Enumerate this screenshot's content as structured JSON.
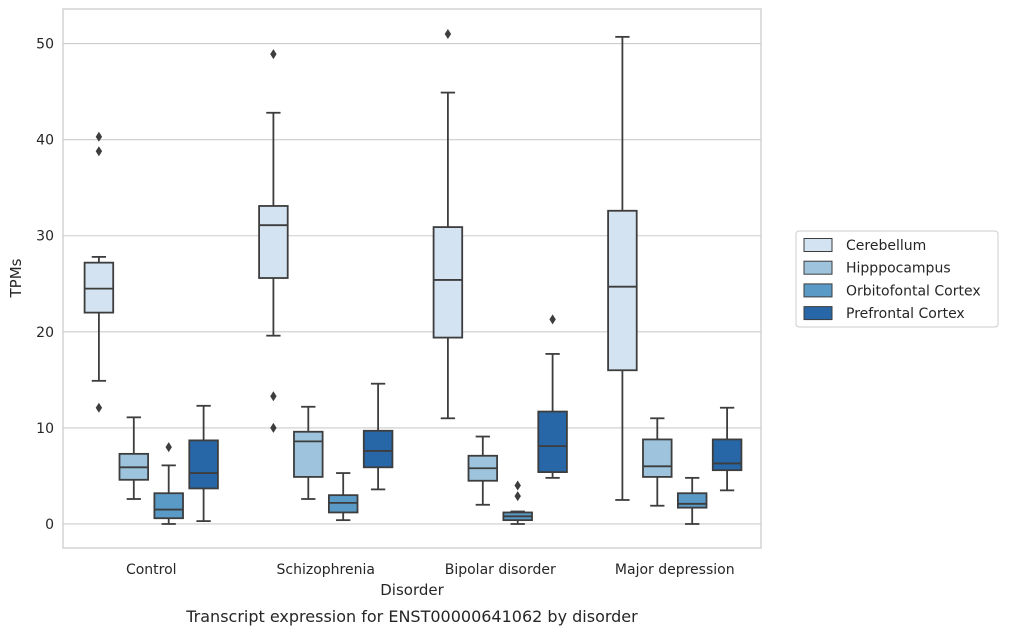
{
  "chart_data": {
    "type": "box",
    "caption": "Transcript expression for ENST00000641062 by disorder",
    "xlabel": "Disorder",
    "ylabel": "TPMs",
    "ylim": [
      -2.5,
      53.6
    ],
    "yticks": [
      0,
      10,
      20,
      30,
      40,
      50
    ],
    "grid": "horizontal",
    "legend_position": "right",
    "categories": [
      "Control",
      "Schizophrenia",
      "Bipolar disorder",
      "Major depression"
    ],
    "series": [
      {
        "name": "Cerebellum",
        "color": "#d4e3f1",
        "boxes": [
          {
            "whisker_low": 14.9,
            "q1": 22.0,
            "median": 24.5,
            "q3": 27.2,
            "whisker_high": 27.8,
            "outliers": [
              12.1,
              38.8,
              40.3
            ]
          },
          {
            "whisker_low": 19.6,
            "q1": 25.6,
            "median": 31.1,
            "q3": 33.1,
            "whisker_high": 42.8,
            "outliers": [
              10.0,
              13.3,
              48.9
            ]
          },
          {
            "whisker_low": 11.0,
            "q1": 19.4,
            "median": 25.4,
            "q3": 30.9,
            "whisker_high": 44.9,
            "outliers": [
              51.0
            ]
          },
          {
            "whisker_low": 2.5,
            "q1": 16.0,
            "median": 24.7,
            "q3": 32.6,
            "whisker_high": 50.7,
            "outliers": []
          }
        ]
      },
      {
        "name": "Hipppocampus",
        "color": "#9dc4dc",
        "boxes": [
          {
            "whisker_low": 2.6,
            "q1": 4.6,
            "median": 5.9,
            "q3": 7.3,
            "whisker_high": 11.1,
            "outliers": []
          },
          {
            "whisker_low": 2.6,
            "q1": 4.9,
            "median": 8.6,
            "q3": 9.6,
            "whisker_high": 12.2,
            "outliers": []
          },
          {
            "whisker_low": 2.0,
            "q1": 4.5,
            "median": 5.8,
            "q3": 7.1,
            "whisker_high": 9.1,
            "outliers": []
          },
          {
            "whisker_low": 1.9,
            "q1": 4.9,
            "median": 6.0,
            "q3": 8.8,
            "whisker_high": 11.0,
            "outliers": []
          }
        ]
      },
      {
        "name": "Orbitofontal Cortex",
        "color": "#5a9ac7",
        "boxes": [
          {
            "whisker_low": 0.0,
            "q1": 0.6,
            "median": 1.5,
            "q3": 3.2,
            "whisker_high": 6.1,
            "outliers": [
              8.0
            ]
          },
          {
            "whisker_low": 0.4,
            "q1": 1.2,
            "median": 2.2,
            "q3": 3.0,
            "whisker_high": 5.3,
            "outliers": []
          },
          {
            "whisker_low": 0.0,
            "q1": 0.4,
            "median": 0.8,
            "q3": 1.2,
            "whisker_high": 1.3,
            "outliers": [
              2.9,
              4.0
            ]
          },
          {
            "whisker_low": 0.0,
            "q1": 1.7,
            "median": 2.1,
            "q3": 3.2,
            "whisker_high": 4.8,
            "outliers": []
          }
        ]
      },
      {
        "name": "Prefrontal Cortex",
        "color": "#2767a8",
        "boxes": [
          {
            "whisker_low": 0.3,
            "q1": 3.7,
            "median": 5.3,
            "q3": 8.7,
            "whisker_high": 12.3,
            "outliers": []
          },
          {
            "whisker_low": 3.6,
            "q1": 5.9,
            "median": 7.6,
            "q3": 9.7,
            "whisker_high": 14.6,
            "outliers": []
          },
          {
            "whisker_low": 4.8,
            "q1": 5.4,
            "median": 8.1,
            "q3": 11.7,
            "whisker_high": 17.7,
            "outliers": [
              21.3
            ]
          },
          {
            "whisker_low": 3.5,
            "q1": 5.6,
            "median": 6.3,
            "q3": 8.8,
            "whisker_high": 12.1,
            "outliers": []
          }
        ]
      }
    ]
  }
}
